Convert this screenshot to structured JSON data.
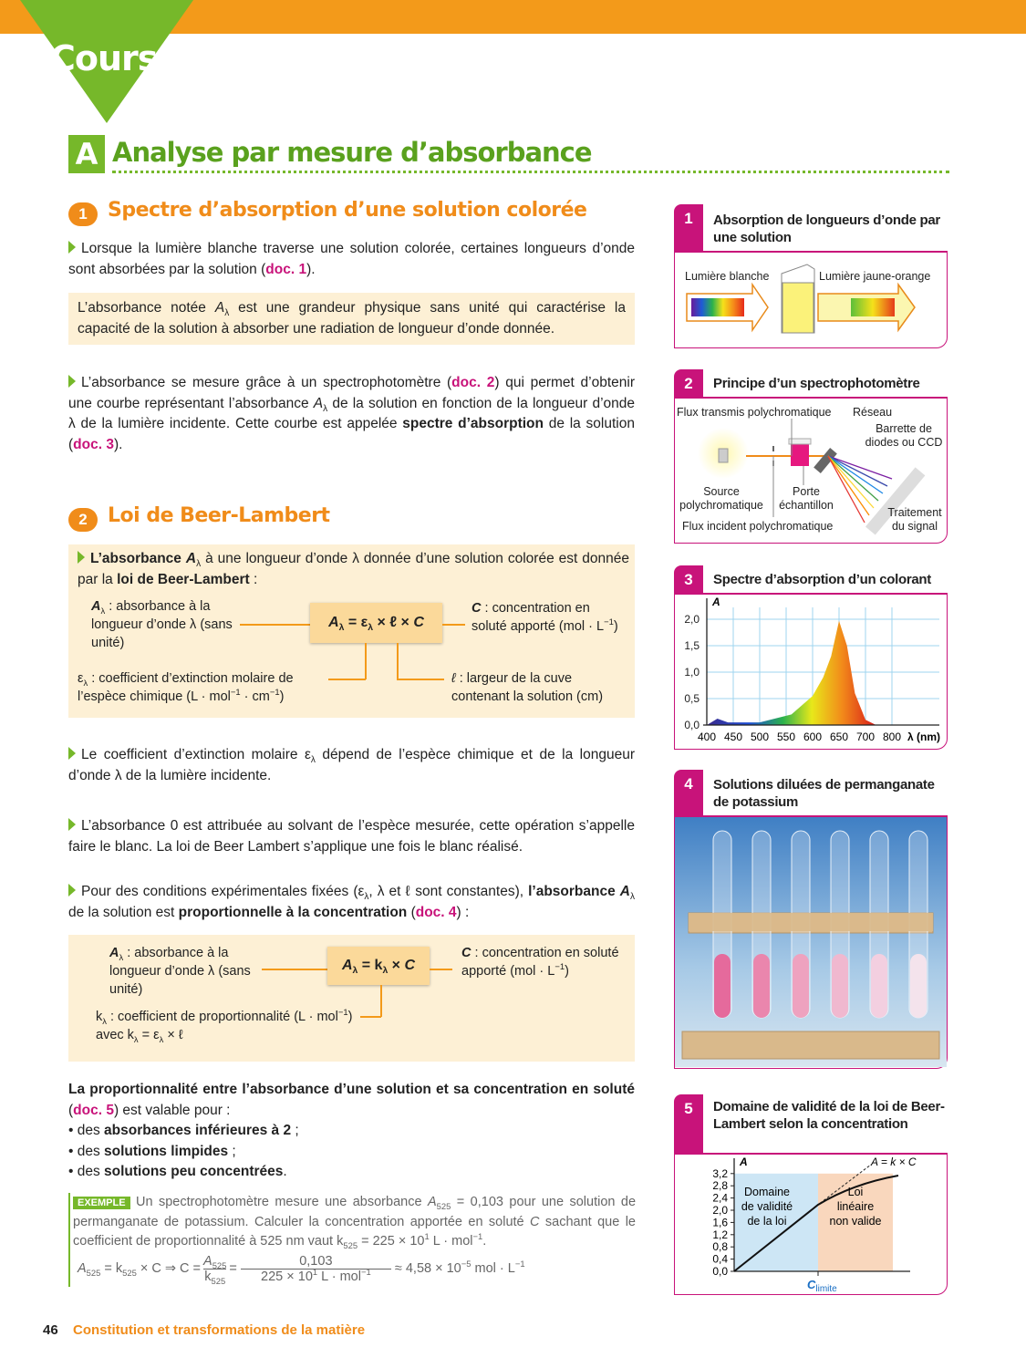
{
  "header": {
    "tab": "Cours"
  },
  "section": {
    "letter": "A",
    "title": "Analyse par mesure d’absorbance"
  },
  "s1": {
    "num": "1",
    "title": "Spectre d’absorption d’une solution colorée",
    "p1": [
      [
        "Lorsque la lumière blanche traverse une solution colorée, certaines longueurs d’onde sont absorbées par la solution ("
      ],
      [
        "doc. 1",
        "d"
      ],
      [
        ")."
      ]
    ],
    "box": [
      [
        "L’absorbance notée "
      ],
      [
        "A",
        "i"
      ],
      [
        "λ",
        "s"
      ],
      [
        " est une grandeur physique sans unité qui caractérise la capacité de la solution à absorber une radiation de longueur d’onde donnée."
      ]
    ],
    "p2": [
      [
        "L’absorbance se mesure grâce à un spectrophotomètre ("
      ],
      [
        "doc. 2",
        "d"
      ],
      [
        ") qui permet d’obtenir une courbe représentant l’absorbance "
      ],
      [
        "A",
        "i"
      ],
      [
        "λ",
        "s"
      ],
      [
        " de la solution en fonction de la longueur d’onde λ de la lumière incidente. Cette courbe est appelée "
      ],
      [
        "spectre d’absorption",
        "b"
      ],
      [
        " de la solution ("
      ],
      [
        "doc. 3",
        "d"
      ],
      [
        ")."
      ]
    ]
  },
  "s2": {
    "num": "2",
    "title": "Loi de Beer-Lambert",
    "intro": [
      [
        "L’absorbance ",
        "b"
      ],
      [
        "A",
        "bi"
      ],
      [
        "λ",
        "s"
      ],
      [
        " à une longueur d’onde λ donnée d’une solution colorée est donnée par la "
      ],
      [
        "loi de Beer-Lambert",
        "b"
      ],
      [
        " :"
      ]
    ],
    "formula": [
      [
        "A",
        "i"
      ],
      [
        "λ",
        "s"
      ],
      [
        " = ε"
      ],
      [
        "λ",
        "s"
      ],
      [
        " × ℓ × "
      ],
      [
        "C",
        "i"
      ]
    ],
    "a_label": [
      [
        "A",
        "bi"
      ],
      [
        "λ",
        "s"
      ],
      [
        " : absorbance à la longueur d’onde λ (sans unité)"
      ]
    ],
    "c_label": [
      [
        "C",
        "bi"
      ],
      [
        " : concentration en soluté apporté (mol · L"
      ],
      [
        "−1",
        "p"
      ],
      [
        ")"
      ]
    ],
    "eps_label": [
      [
        "ε"
      ],
      [
        "λ",
        "s"
      ],
      [
        " : coefficient d’extinction molaire de l’espèce chimique (L · mol"
      ],
      [
        "−1",
        "p"
      ],
      [
        " · cm"
      ],
      [
        "−1",
        "p"
      ],
      [
        ")"
      ]
    ],
    "l_label": [
      [
        "ℓ",
        "i"
      ],
      [
        " : largeur de la cuve contenant la solution (cm)"
      ]
    ],
    "p3": [
      [
        "Le coefficient d’extinction molaire ε"
      ],
      [
        "λ",
        "s"
      ],
      [
        " dépend de l’espèce chimique et de la longueur d’onde λ de la lumière incidente."
      ]
    ],
    "p4": [
      [
        "L’absorbance 0 est attribuée au solvant de l’espèce mesurée, cette opération s’appelle faire le blanc. La loi de Beer Lambert s’applique une fois le blanc réalisé."
      ]
    ],
    "p5": [
      [
        "Pour des conditions expérimentales fixées (ε"
      ],
      [
        "λ",
        "s"
      ],
      [
        ", λ et ℓ sont constantes), "
      ],
      [
        "l’absorbance ",
        "b"
      ],
      [
        "A",
        "bi"
      ],
      [
        "λ",
        "s"
      ],
      [
        " de la solution est "
      ],
      [
        "proportionnelle à la concentration",
        "b"
      ],
      [
        " ("
      ],
      [
        "doc. 4",
        "d"
      ],
      [
        ") :"
      ]
    ],
    "formula2": [
      [
        "A",
        "i"
      ],
      [
        "λ",
        "s"
      ],
      [
        " = k"
      ],
      [
        "λ",
        "s"
      ],
      [
        " × "
      ],
      [
        "C",
        "i"
      ]
    ],
    "a2_label": [
      [
        "A",
        "bi"
      ],
      [
        "λ",
        "s"
      ],
      [
        " : absorbance à la longueur d’onde λ (sans unité)"
      ]
    ],
    "c2_label": [
      [
        "C",
        "bi"
      ],
      [
        " : concentration en soluté apporté (mol · L"
      ],
      [
        "−1",
        "p"
      ],
      [
        ")"
      ]
    ],
    "k_label": [
      [
        "k"
      ],
      [
        "λ",
        "s"
      ],
      [
        " : coefficient de proportionnalité (L · mol"
      ],
      [
        "−1",
        "p"
      ],
      [
        ") avec k"
      ],
      [
        "λ",
        "s"
      ],
      [
        " = ε"
      ],
      [
        "λ",
        "s"
      ],
      [
        " × ℓ"
      ]
    ],
    "validity": [
      [
        "La proportionnalité entre l’absorbance d’une solution et sa concentration en soluté",
        "b"
      ],
      [
        " ("
      ],
      [
        "doc. 5",
        "d"
      ],
      [
        ") est valable pour :"
      ]
    ],
    "bullets": [
      [
        [
          "• des "
        ],
        [
          "absorbances inférieures à 2",
          "b"
        ],
        [
          " ;"
        ]
      ],
      [
        [
          "• des "
        ],
        [
          "solutions limpides",
          "b"
        ],
        [
          " ;"
        ]
      ],
      [
        [
          "• des "
        ],
        [
          "solutions peu concentrées",
          "b"
        ],
        [
          "."
        ]
      ]
    ],
    "example_tag": "EXEMPLE",
    "example": [
      [
        "Un spectrophotomètre mesure une absorbance "
      ],
      [
        "A",
        "i"
      ],
      [
        "525",
        "s"
      ],
      [
        " = 0,103 pour une solution de permanganate de potassium. Calculer la concentration apportée en soluté "
      ],
      [
        "C",
        "i"
      ],
      [
        " sachant que le coefficient de proportionnalité à 525 nm vaut k"
      ],
      [
        "525",
        "s"
      ],
      [
        " = 225 × 10"
      ],
      [
        "1",
        "p"
      ],
      [
        " L · mol"
      ],
      [
        "−1",
        "p"
      ],
      [
        "."
      ]
    ],
    "calc_left": [
      [
        "A",
        "i"
      ],
      [
        "525",
        "s"
      ],
      [
        " = k"
      ],
      [
        "525",
        "s"
      ],
      [
        " × C ⇒ C = "
      ]
    ],
    "calc_frac1_num": [
      [
        "A",
        "i"
      ],
      [
        "525",
        "s"
      ]
    ],
    "calc_frac1_den": [
      [
        "k"
      ],
      [
        "525",
        "s"
      ]
    ],
    "calc_frac2_num": [
      [
        "0,103"
      ]
    ],
    "calc_frac2_den": [
      [
        "225 × 10"
      ],
      [
        "1",
        "p"
      ],
      [
        " L · mol"
      ],
      [
        "−1",
        "p"
      ]
    ],
    "calc_result": [
      [
        "≈ 4,58 × 10"
      ],
      [
        "−5",
        "p"
      ],
      [
        " mol · L"
      ],
      [
        "−1",
        "p"
      ]
    ]
  },
  "docs": [
    {
      "num": "1",
      "title": "Absorption de longueurs d’onde par une solution",
      "labels": [
        "Lumière blanche",
        "Lumière jaune-orange"
      ]
    },
    {
      "num": "2",
      "title": "Principe d’un spectrophotomètre",
      "labels": [
        "Flux transmis polychromatique",
        "Réseau",
        "Barrette de diodes ou CCD",
        "Source polychromatique",
        "Porte échantillon",
        "Traitement du signal",
        "Flux incident polychromatique"
      ]
    },
    {
      "num": "3",
      "title": "Spectre d’absorption d’un colorant",
      "y_label": "A",
      "x_label": "λ (nm)",
      "y_ticks": [
        "2,0",
        "1,5",
        "1,0",
        "0,5",
        "0,0"
      ],
      "x_ticks": [
        "400",
        "450",
        "500",
        "550",
        "600",
        "650",
        "700",
        "800"
      ]
    },
    {
      "num": "4",
      "title": "Solutions diluées de permanganate de potassium"
    },
    {
      "num": "5",
      "title": "Domaine de validité de la loi de Beer-Lambert selon la concentration",
      "y_label": "A",
      "y_ticks": [
        "3,2",
        "2,8",
        "2,4",
        "2,0",
        "1,6",
        "1,2",
        "0,8",
        "0,4",
        "0,0"
      ],
      "line_label": "A = k × C",
      "zone1": "Domaine de validité de la loi",
      "zone2": "Loi linéaire non valide",
      "x_label": "C",
      "x_sub": "limite",
      "colors": {
        "valid": "#cde6f5",
        "invalid": "#f9d7bd"
      }
    }
  ],
  "footer": {
    "page": "46",
    "title": "Constitution et transformations de la matière"
  },
  "colors": {
    "orange": "#f39a1a",
    "green": "#76b82a",
    "magenta": "#c8137a",
    "box": "#fdf0d5"
  }
}
